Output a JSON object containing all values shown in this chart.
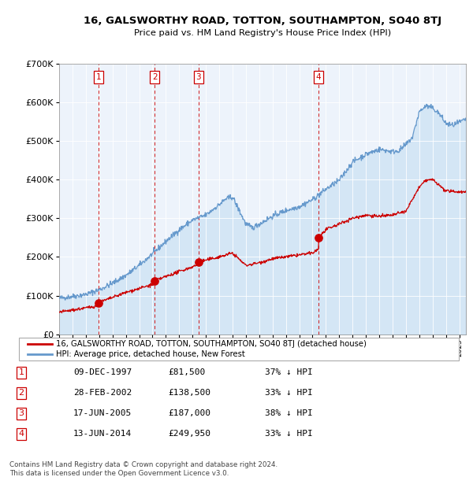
{
  "title1": "16, GALSWORTHY ROAD, TOTTON, SOUTHAMPTON, SO40 8TJ",
  "title2": "Price paid vs. HM Land Registry's House Price Index (HPI)",
  "legend_label_red": "16, GALSWORTHY ROAD, TOTTON, SOUTHAMPTON, SO40 8TJ (detached house)",
  "legend_label_blue": "HPI: Average price, detached house, New Forest",
  "footer1": "Contains HM Land Registry data © Crown copyright and database right 2024.",
  "footer2": "This data is licensed under the Open Government Licence v3.0.",
  "sales": [
    {
      "num": 1,
      "date": "09-DEC-1997",
      "date_x": 1997.94,
      "price": 81500,
      "hpi_pct": "37% ↓ HPI"
    },
    {
      "num": 2,
      "date": "28-FEB-2002",
      "date_x": 2002.16,
      "price": 138500,
      "hpi_pct": "33% ↓ HPI"
    },
    {
      "num": 3,
      "date": "17-JUN-2005",
      "date_x": 2005.46,
      "price": 187000,
      "hpi_pct": "38% ↓ HPI"
    },
    {
      "num": 4,
      "date": "13-JUN-2014",
      "date_x": 2014.45,
      "price": 249950,
      "hpi_pct": "33% ↓ HPI"
    }
  ],
  "table_rows": [
    [
      "1",
      "09-DEC-1997",
      "£81,500",
      "37% ↓ HPI"
    ],
    [
      "2",
      "28-FEB-2002",
      "£138,500",
      "33% ↓ HPI"
    ],
    [
      "3",
      "17-JUN-2005",
      "£187,000",
      "38% ↓ HPI"
    ],
    [
      "4",
      "13-JUN-2014",
      "£249,950",
      "33% ↓ HPI"
    ]
  ],
  "ylim": [
    0,
    700000
  ],
  "xlim": [
    1995,
    2025.5
  ],
  "red_color": "#cc0000",
  "blue_color": "#6699cc",
  "fill_color": "#d0e4f5"
}
